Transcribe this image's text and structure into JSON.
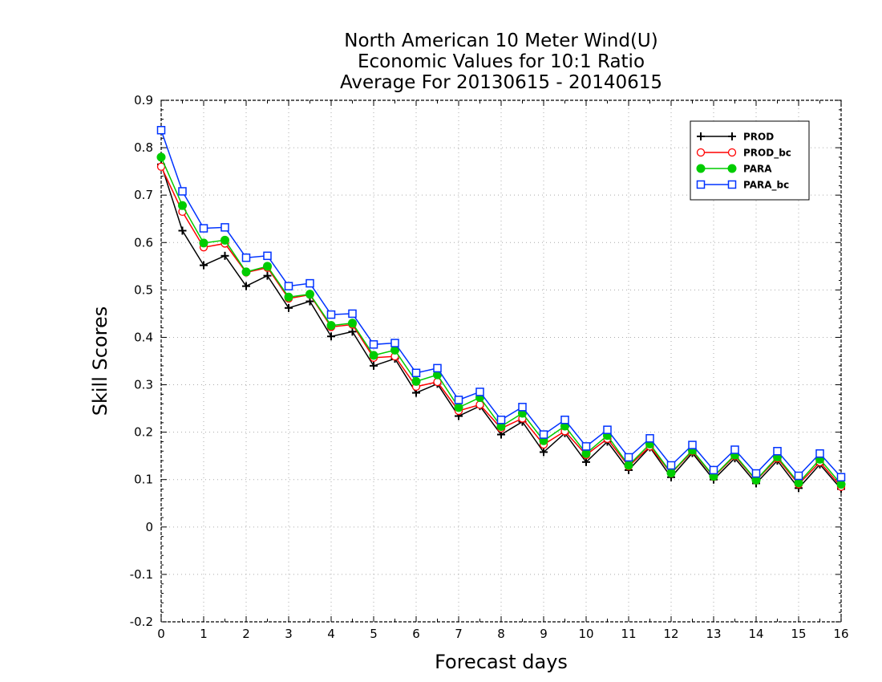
{
  "chart_data": {
    "type": "line",
    "title_lines": [
      "North American 10 Meter Wind(U)",
      "Economic Values for 10:1 Ratio",
      "Average For 20130615 - 20140615"
    ],
    "xlabel": "Forecast days",
    "ylabel": "Skill Scores",
    "xlim": [
      0,
      16
    ],
    "ylim": [
      -0.2,
      0.9
    ],
    "xticks": [
      "0",
      "1",
      "2",
      "3",
      "4",
      "5",
      "6",
      "7",
      "8",
      "9",
      "10",
      "11",
      "12",
      "13",
      "14",
      "15",
      "16"
    ],
    "yticks": [
      "-0.2",
      "-0.1",
      "0",
      "0.1",
      "0.2",
      "0.3",
      "0.4",
      "0.5",
      "0.6",
      "0.7",
      "0.8",
      "0.9"
    ],
    "grid": true,
    "legend_position": "top-right",
    "x": [
      0,
      0.5,
      1,
      1.5,
      2,
      2.5,
      3,
      3.5,
      4,
      4.5,
      5,
      5.5,
      6,
      6.5,
      7,
      7.5,
      8,
      8.5,
      9,
      9.5,
      10,
      10.5,
      11,
      11.5,
      12,
      12.5,
      13,
      13.5,
      14,
      14.5,
      15,
      15.5,
      16
    ],
    "series": [
      {
        "name": "PROD",
        "color": "#000000",
        "marker": "plus",
        "values": [
          0.765,
          0.625,
          0.552,
          0.572,
          0.508,
          0.53,
          0.462,
          0.476,
          0.402,
          0.412,
          0.34,
          0.355,
          0.283,
          0.302,
          0.234,
          0.255,
          0.195,
          0.222,
          0.158,
          0.198,
          0.137,
          0.18,
          0.12,
          0.168,
          0.105,
          0.156,
          0.1,
          0.145,
          0.092,
          0.14,
          0.082,
          0.132,
          0.08
        ]
      },
      {
        "name": "PROD_bc",
        "color": "#ff0000",
        "marker": "open-circle",
        "values": [
          0.76,
          0.665,
          0.59,
          0.598,
          0.537,
          0.547,
          0.482,
          0.49,
          0.422,
          0.427,
          0.357,
          0.36,
          0.296,
          0.306,
          0.245,
          0.258,
          0.208,
          0.229,
          0.174,
          0.202,
          0.152,
          0.186,
          0.128,
          0.17,
          0.113,
          0.16,
          0.106,
          0.15,
          0.098,
          0.145,
          0.09,
          0.137,
          0.085
        ]
      },
      {
        "name": "PARA",
        "color": "#00cc00",
        "marker": "filled-circle",
        "values": [
          0.78,
          0.678,
          0.599,
          0.605,
          0.538,
          0.55,
          0.485,
          0.491,
          0.425,
          0.43,
          0.362,
          0.373,
          0.307,
          0.321,
          0.252,
          0.273,
          0.212,
          0.24,
          0.182,
          0.213,
          0.155,
          0.193,
          0.13,
          0.175,
          0.114,
          0.162,
          0.107,
          0.152,
          0.099,
          0.148,
          0.093,
          0.143,
          0.09
        ]
      },
      {
        "name": "PARA_bc",
        "color": "#0033ff",
        "marker": "open-square",
        "values": [
          0.837,
          0.708,
          0.63,
          0.632,
          0.568,
          0.572,
          0.508,
          0.514,
          0.448,
          0.45,
          0.385,
          0.388,
          0.325,
          0.335,
          0.268,
          0.285,
          0.226,
          0.253,
          0.195,
          0.226,
          0.17,
          0.205,
          0.147,
          0.187,
          0.13,
          0.173,
          0.12,
          0.163,
          0.113,
          0.16,
          0.108,
          0.155,
          0.105
        ]
      }
    ]
  }
}
